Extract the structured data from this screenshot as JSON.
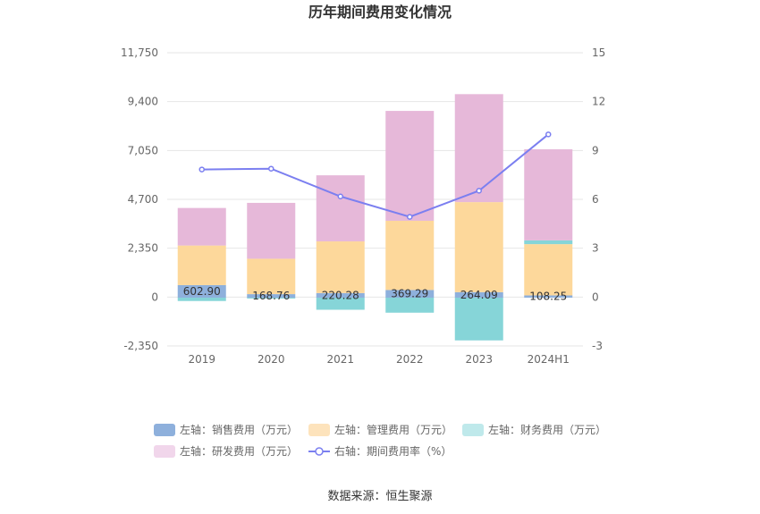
{
  "chart_data": {
    "type": "bar",
    "title": "历年期间费用变化情况",
    "source": "数据来源：恒生聚源",
    "categories": [
      "2019",
      "2020",
      "2021",
      "2022",
      "2023",
      "2024H1"
    ],
    "left_axis": {
      "ticks": [
        "-2,350",
        "0",
        "2,350",
        "4,700",
        "7,050",
        "9,400",
        "11,750"
      ],
      "min": -2350,
      "max": 11750
    },
    "right_axis": {
      "ticks": [
        "-3",
        "0",
        "3",
        "6",
        "9",
        "12",
        "15"
      ],
      "min": -3,
      "max": 15
    },
    "series": [
      {
        "name": "左轴：销售费用（万元）",
        "color": "#8eb0dc",
        "legend_color": "#8eb0dc",
        "values": [
          602.9,
          168.76,
          220.28,
          369.29,
          264.09,
          108.25
        ]
      },
      {
        "name": "左轴：管理费用（万元）",
        "color": "#fdd89b",
        "legend_color": "#fde3bc",
        "values": [
          1900,
          1700,
          2480,
          3320,
          4320,
          2460
        ]
      },
      {
        "name": "左轴：财务费用（万元）",
        "color": "#86d5d8",
        "legend_color": "#bfe9eb",
        "values": [
          -160,
          -40,
          -580,
          -720,
          -2050,
          180
        ]
      },
      {
        "name": "左轴：研发费用（万元）",
        "color": "#e6b8d9",
        "legend_color": "#f1d6eb",
        "values": [
          1800,
          2680,
          3170,
          5270,
          5180,
          4370
        ]
      },
      {
        "name": "右轴：期间费用率（%）",
        "type": "line",
        "axis": "right",
        "color": "#7b7ff0",
        "values": [
          7.85,
          7.9,
          6.2,
          4.95,
          6.55,
          10.0
        ]
      }
    ],
    "data_labels": [
      "602.90",
      "168.76",
      "220.28",
      "369.29",
      "264.09",
      "108.25"
    ],
    "legend_position": "bottom"
  }
}
